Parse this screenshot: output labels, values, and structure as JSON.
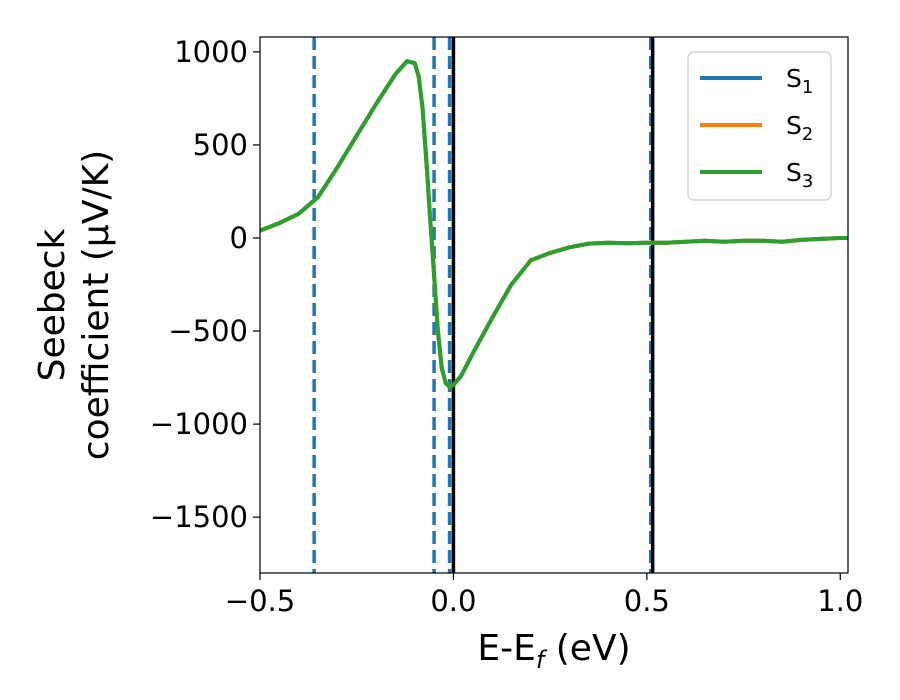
{
  "chart_data": {
    "type": "line",
    "xlabel": {
      "base": "E-E",
      "sub": "f",
      "tail": " (eV)"
    },
    "ylabel": {
      "line1": "Seebeck",
      "line2": "coefficient  (μV/K)"
    },
    "xlim": [
      -0.5,
      1.02
    ],
    "ylim": [
      -1800,
      1080
    ],
    "xticks": [
      {
        "value": -0.5,
        "label": "−0.5"
      },
      {
        "value": 0.0,
        "label": "0.0"
      },
      {
        "value": 0.5,
        "label": "0.5"
      },
      {
        "value": 1.0,
        "label": "1.0"
      }
    ],
    "yticks": [
      {
        "value": 1000,
        "label": "1000"
      },
      {
        "value": 500,
        "label": "500"
      },
      {
        "value": 0,
        "label": "0"
      },
      {
        "value": -500,
        "label": "−500"
      },
      {
        "value": -1000,
        "label": "−1000"
      },
      {
        "value": -1500,
        "label": "−1500"
      }
    ],
    "grid": false,
    "legend_position": "top-right",
    "series": [
      {
        "name": "S1",
        "label_base": "S",
        "label_sub": "1",
        "color": "#1f77b4",
        "x": [
          -0.5,
          -0.45,
          -0.4,
          -0.35,
          -0.3,
          -0.25,
          -0.2,
          -0.15,
          -0.12,
          -0.1,
          -0.09,
          -0.08,
          -0.07,
          -0.06,
          -0.05,
          -0.04,
          -0.03,
          -0.02,
          -0.01,
          0.0,
          0.02,
          0.05,
          0.1,
          0.15,
          0.2,
          0.25,
          0.3,
          0.35,
          0.4,
          0.45,
          0.5,
          0.55,
          0.6,
          0.65,
          0.7,
          0.75,
          0.8,
          0.85,
          0.9,
          0.95,
          1.0,
          1.02
        ],
        "y": [
          40,
          80,
          130,
          220,
          380,
          550,
          720,
          880,
          950,
          940,
          870,
          700,
          420,
          100,
          -200,
          -500,
          -700,
          -780,
          -800,
          -790,
          -740,
          -620,
          -430,
          -250,
          -120,
          -80,
          -50,
          -30,
          -25,
          -28,
          -25,
          -25,
          -20,
          -15,
          -20,
          -15,
          -15,
          -20,
          -10,
          -5,
          0,
          0
        ]
      },
      {
        "name": "S2",
        "label_base": "S",
        "label_sub": "2",
        "color": "#ff7f0e",
        "x": [
          -0.5,
          -0.45,
          -0.4,
          -0.35,
          -0.3,
          -0.25,
          -0.2,
          -0.15,
          -0.12,
          -0.1,
          -0.09,
          -0.08,
          -0.07,
          -0.06,
          -0.05,
          -0.04,
          -0.03,
          -0.02,
          -0.01,
          0.0,
          0.02,
          0.05,
          0.1,
          0.15,
          0.2,
          0.25,
          0.3,
          0.35,
          0.4,
          0.45,
          0.5,
          0.55,
          0.6,
          0.65,
          0.7,
          0.75,
          0.8,
          0.85,
          0.9,
          0.95,
          1.0,
          1.02
        ],
        "y": [
          40,
          80,
          130,
          220,
          380,
          550,
          720,
          880,
          950,
          940,
          870,
          700,
          420,
          100,
          -200,
          -500,
          -700,
          -780,
          -800,
          -790,
          -740,
          -620,
          -430,
          -250,
          -120,
          -80,
          -50,
          -30,
          -25,
          -28,
          -25,
          -25,
          -20,
          -15,
          -20,
          -15,
          -15,
          -20,
          -10,
          -5,
          0,
          0
        ]
      },
      {
        "name": "S3",
        "label_base": "S",
        "label_sub": "3",
        "color": "#2ca02c",
        "x": [
          -0.5,
          -0.45,
          -0.4,
          -0.35,
          -0.3,
          -0.25,
          -0.2,
          -0.15,
          -0.12,
          -0.1,
          -0.09,
          -0.08,
          -0.07,
          -0.06,
          -0.05,
          -0.04,
          -0.03,
          -0.02,
          -0.01,
          0.0,
          0.02,
          0.05,
          0.1,
          0.15,
          0.2,
          0.25,
          0.3,
          0.35,
          0.4,
          0.45,
          0.5,
          0.55,
          0.6,
          0.65,
          0.7,
          0.75,
          0.8,
          0.85,
          0.9,
          0.95,
          1.0,
          1.02
        ],
        "y": [
          40,
          80,
          130,
          220,
          380,
          550,
          720,
          880,
          950,
          940,
          870,
          700,
          420,
          100,
          -200,
          -500,
          -700,
          -780,
          -800,
          -790,
          -740,
          -620,
          -430,
          -250,
          -120,
          -80,
          -50,
          -30,
          -25,
          -28,
          -25,
          -25,
          -20,
          -15,
          -20,
          -15,
          -15,
          -20,
          -10,
          -5,
          0,
          0
        ]
      }
    ],
    "vlines": [
      {
        "x": -0.36,
        "style": "dashed",
        "color": "#1f77b4"
      },
      {
        "x": -0.05,
        "style": "dashed",
        "color": "#1f77b4"
      },
      {
        "x": -0.01,
        "style": "dashed",
        "color": "#1f77b4"
      },
      {
        "x": 0.0,
        "style": "solid",
        "color": "#000000"
      },
      {
        "x": 0.51,
        "style": "dashed",
        "color": "#1f77b4"
      },
      {
        "x": 0.515,
        "style": "solid",
        "color": "#000000"
      }
    ]
  }
}
